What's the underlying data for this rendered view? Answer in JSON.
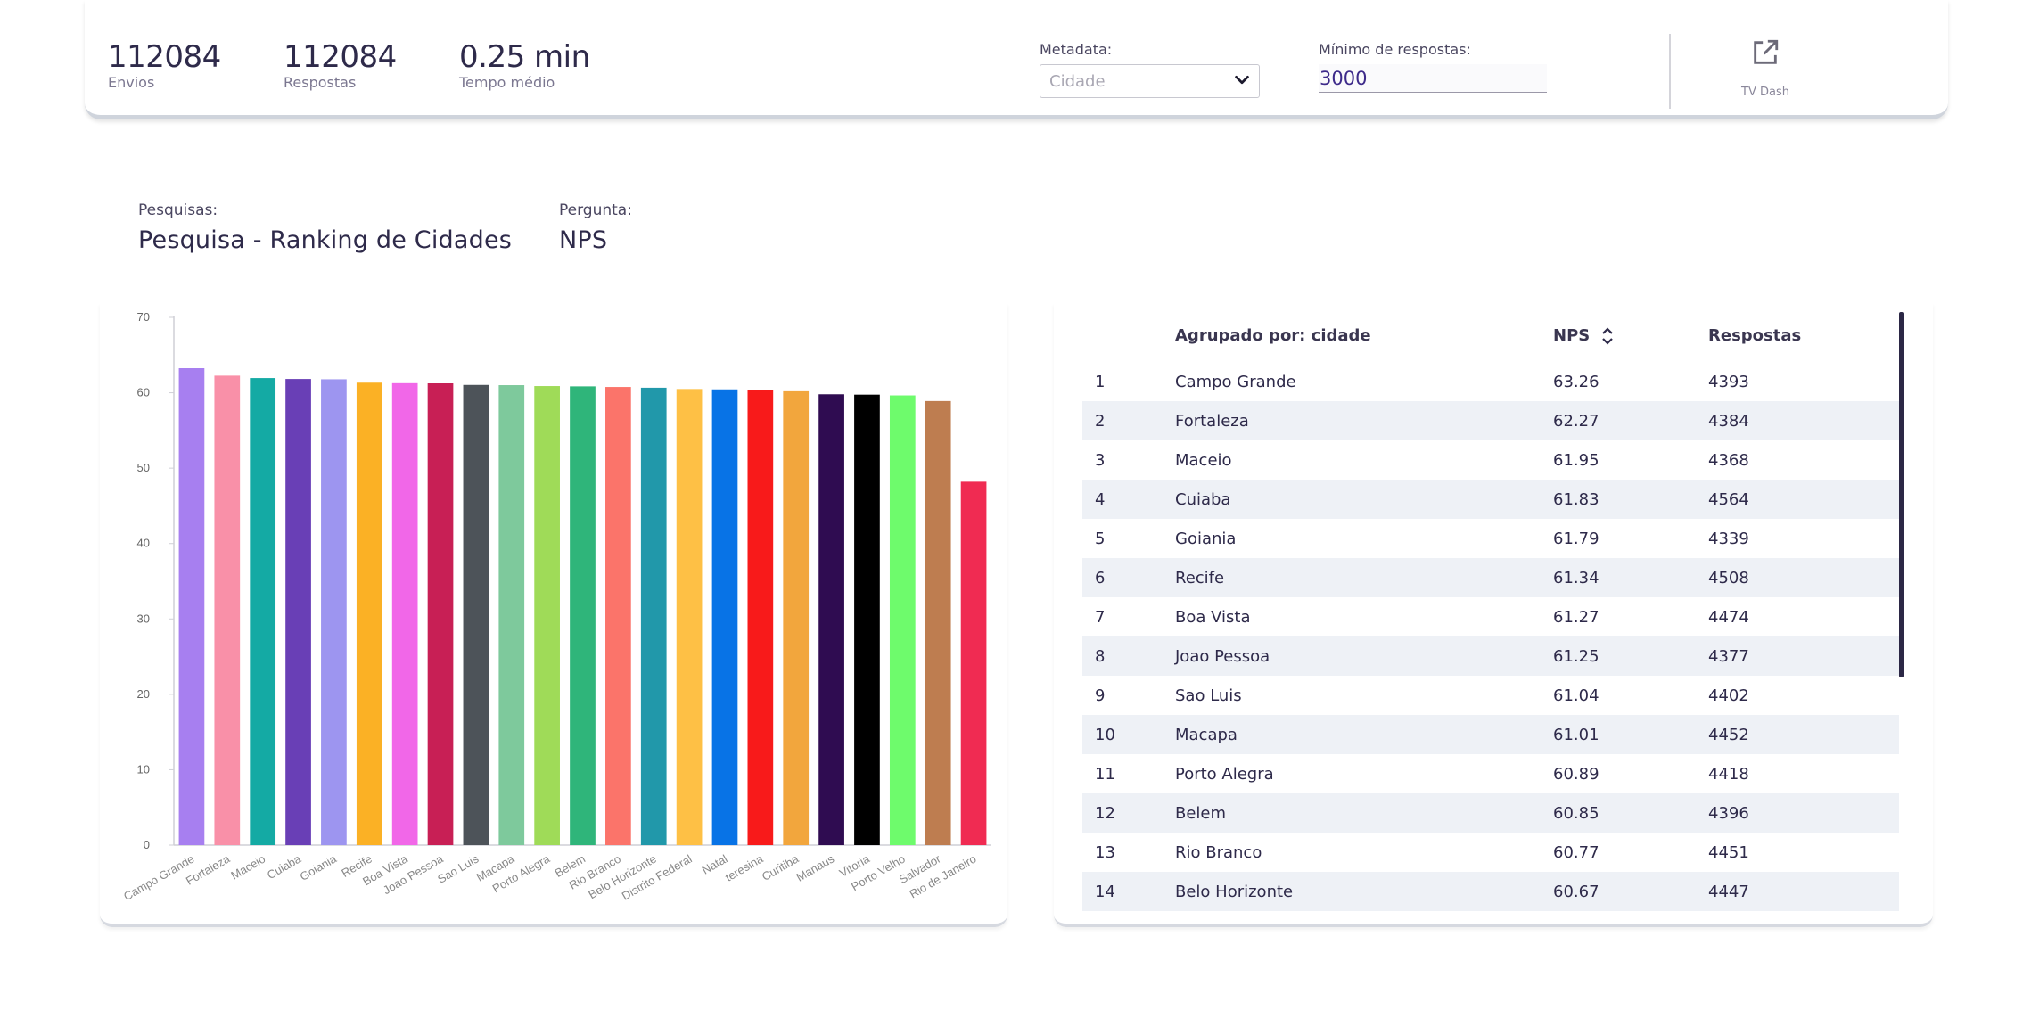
{
  "stats": [
    {
      "value": "112084",
      "label": "Envios"
    },
    {
      "value": "112084",
      "label": "Respostas"
    },
    {
      "value": "0.25 min",
      "label": "Tempo médio"
    }
  ],
  "filters": {
    "metadata_label": "Metadata:",
    "metadata_value": "Cidade",
    "min_label": "Mínimo de respostas:",
    "min_value": "3000"
  },
  "tv_dash": {
    "label": "TV Dash",
    "icon": "external-link-icon"
  },
  "survey": {
    "label": "Pesquisas:",
    "value": "Pesquisa - Ranking de Cidades"
  },
  "question": {
    "label": "Pergunta:",
    "value": "NPS"
  },
  "chart_data": {
    "type": "bar",
    "categories": [
      "Campo Grande",
      "Fortaleza",
      "Maceio",
      "Cuiaba",
      "Goiania",
      "Recife",
      "Boa Vista",
      "Joao Pessoa",
      "Sao Luis",
      "Macapa",
      "Porto Alegra",
      "Belem",
      "Rio Branco",
      "Belo Horizonte",
      "Distrito Federal",
      "Natal",
      "teresina",
      "Curitiba",
      "Manaus",
      "Vitoria",
      "Porto Velho",
      "Salvador",
      "Rio de Janeiro"
    ],
    "values": [
      63.26,
      62.27,
      61.95,
      61.83,
      61.79,
      61.34,
      61.27,
      61.25,
      61.04,
      61.01,
      60.89,
      60.85,
      60.77,
      60.67,
      60.5,
      60.45,
      60.4,
      60.2,
      59.8,
      59.75,
      59.65,
      58.9,
      48.2
    ],
    "colors": [
      "#a77ff0",
      "#f990a8",
      "#14aaa4",
      "#693fb6",
      "#9d95f0",
      "#fbb125",
      "#f167e8",
      "#c81f55",
      "#4d5359",
      "#7ec99c",
      "#9fdb58",
      "#2fb57a",
      "#fb746a",
      "#2198aa",
      "#fec045",
      "#0873e6",
      "#f81a1a",
      "#f2a63d",
      "#2f0c51",
      "#000000",
      "#6efb6c",
      "#be7d50",
      "#f02b52"
    ],
    "yticks": [
      0,
      10,
      20,
      30,
      40,
      50,
      60,
      70
    ],
    "ylim": [
      0,
      70
    ],
    "grid": false,
    "legend": false
  },
  "table": {
    "headers": {
      "group": "Agrupado por: cidade",
      "nps": "NPS",
      "responses": "Respostas"
    },
    "rows": [
      {
        "rank": "1",
        "city": "Campo Grande",
        "nps": "63.26",
        "responses": "4393"
      },
      {
        "rank": "2",
        "city": "Fortaleza",
        "nps": "62.27",
        "responses": "4384"
      },
      {
        "rank": "3",
        "city": "Maceio",
        "nps": "61.95",
        "responses": "4368"
      },
      {
        "rank": "4",
        "city": "Cuiaba",
        "nps": "61.83",
        "responses": "4564"
      },
      {
        "rank": "5",
        "city": "Goiania",
        "nps": "61.79",
        "responses": "4339"
      },
      {
        "rank": "6",
        "city": "Recife",
        "nps": "61.34",
        "responses": "4508"
      },
      {
        "rank": "7",
        "city": "Boa Vista",
        "nps": "61.27",
        "responses": "4474"
      },
      {
        "rank": "8",
        "city": "Joao Pessoa",
        "nps": "61.25",
        "responses": "4377"
      },
      {
        "rank": "9",
        "city": "Sao Luis",
        "nps": "61.04",
        "responses": "4402"
      },
      {
        "rank": "10",
        "city": "Macapa",
        "nps": "61.01",
        "responses": "4452"
      },
      {
        "rank": "11",
        "city": "Porto Alegra",
        "nps": "60.89",
        "responses": "4418"
      },
      {
        "rank": "12",
        "city": "Belem",
        "nps": "60.85",
        "responses": "4396"
      },
      {
        "rank": "13",
        "city": "Rio Branco",
        "nps": "60.77",
        "responses": "4451"
      },
      {
        "rank": "14",
        "city": "Belo Horizonte",
        "nps": "60.67",
        "responses": "4447"
      }
    ]
  }
}
